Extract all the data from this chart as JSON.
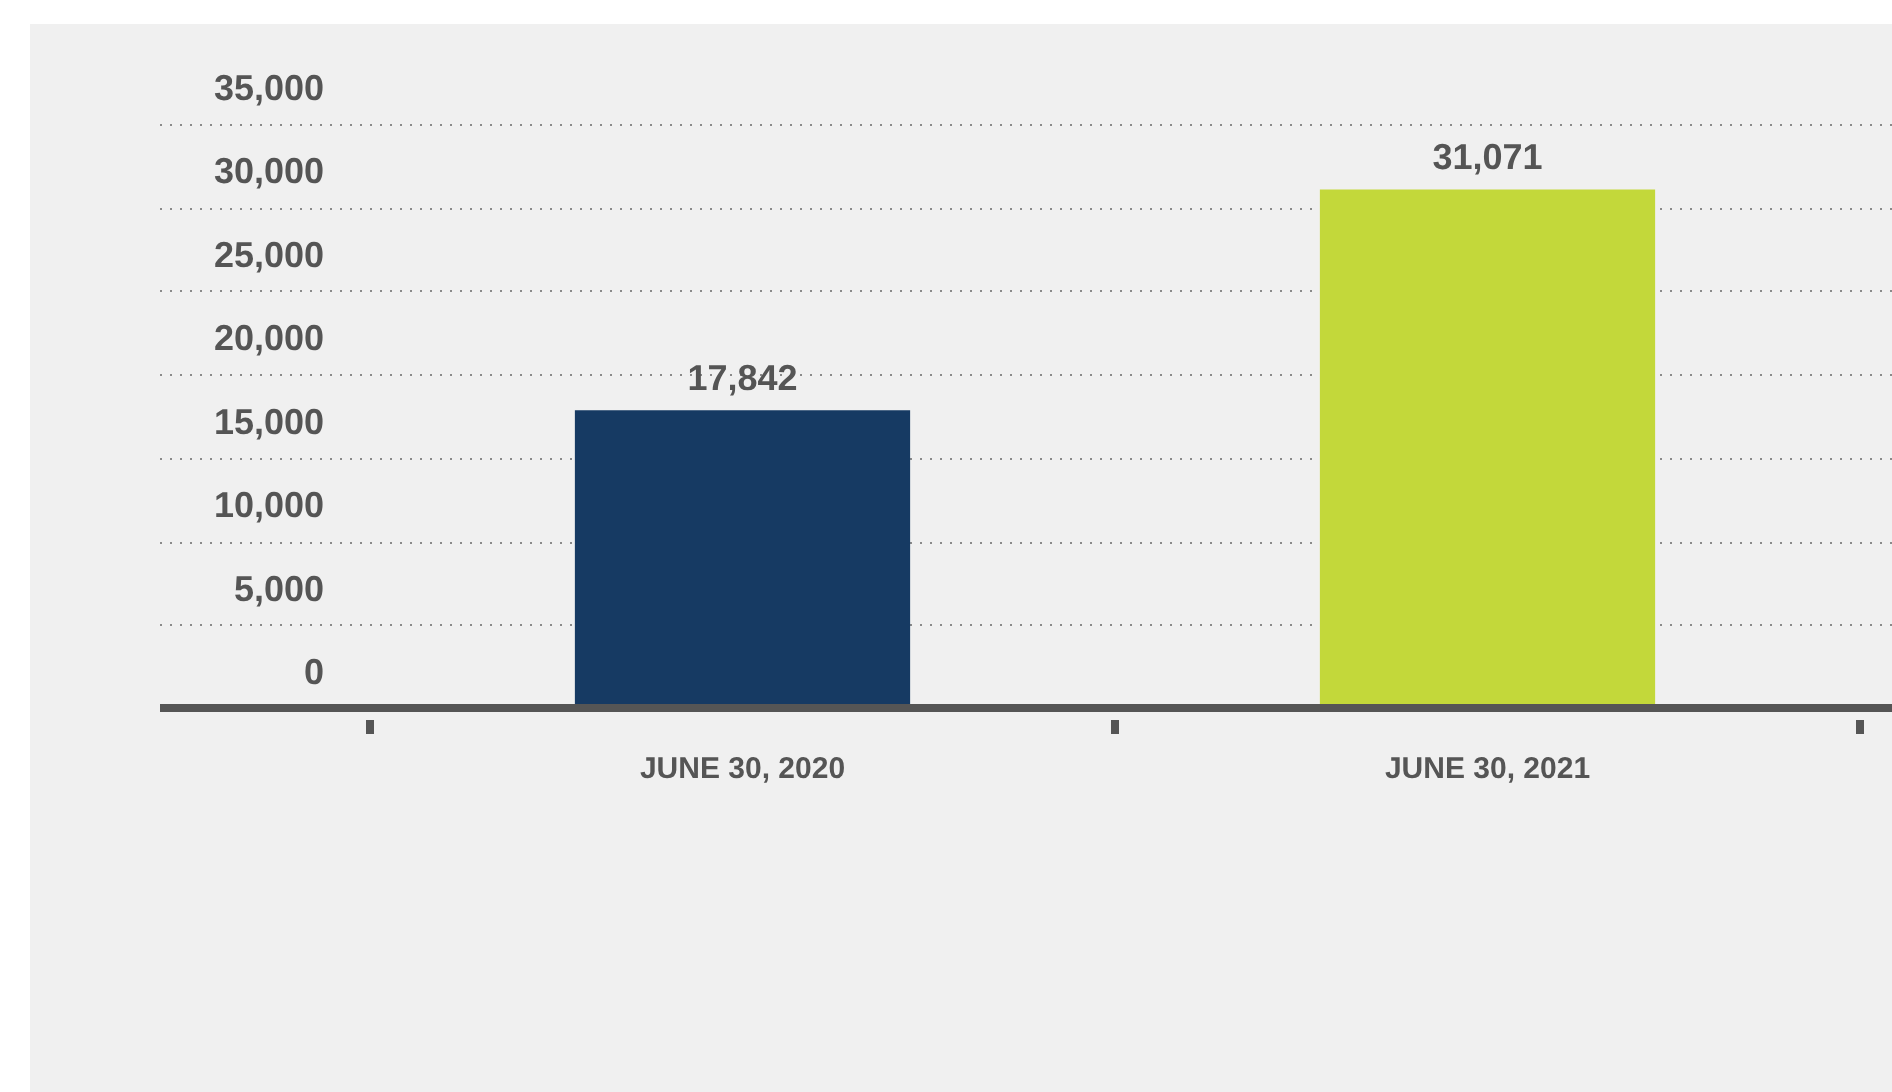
{
  "chart_data": {
    "type": "bar",
    "categories": [
      "JUNE 30, 2020",
      "JUNE 30, 2021"
    ],
    "values": [
      17842,
      31071
    ],
    "value_labels": [
      "17,842",
      "31,071"
    ],
    "colors": [
      "#163a63",
      "#c3d83a"
    ],
    "ylim": [
      0,
      35000
    ],
    "yticks": [
      {
        "value": 0,
        "label": "0"
      },
      {
        "value": 5000,
        "label": "5,000"
      },
      {
        "value": 10000,
        "label": "10,000"
      },
      {
        "value": 15000,
        "label": "15,000"
      },
      {
        "value": 20000,
        "label": "20,000"
      },
      {
        "value": 25000,
        "label": "25,000"
      },
      {
        "value": 30000,
        "label": "30,000"
      },
      {
        "value": 35000,
        "label": "35,000"
      }
    ],
    "grid": "y",
    "legend": false
  }
}
